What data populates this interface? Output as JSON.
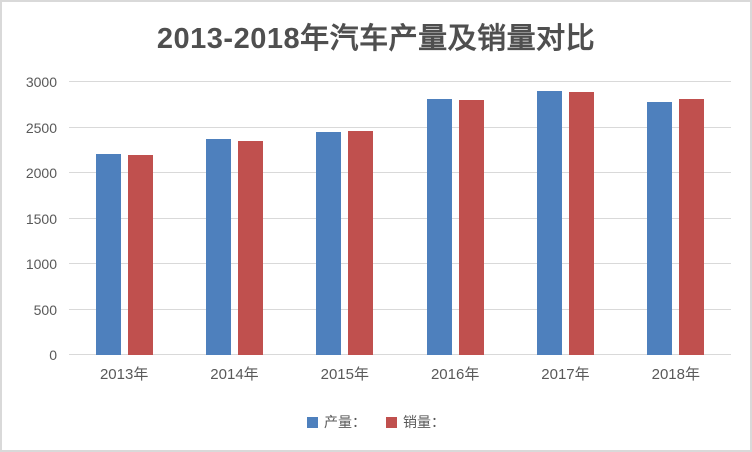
{
  "window": {
    "background_color": "#FFFFFF",
    "border_color": "#D9D9D9"
  },
  "chart_data": {
    "type": "bar",
    "title": "2013-2018年汽车产量及销量对比",
    "categories": [
      "2013年",
      "2014年",
      "2015年",
      "2016年",
      "2017年",
      "2018年"
    ],
    "series": [
      {
        "key": "production",
        "name": "产量：",
        "color": "#4E80BD",
        "values": [
          2211.68,
          2372.29,
          2450.33,
          2811.88,
          2901.54,
          2780.92
        ]
      },
      {
        "key": "sales",
        "name": "销量：",
        "color": "#C0504E",
        "values": [
          2198.41,
          2349.19,
          2459.76,
          2802.82,
          2887.89,
          2808.06
        ]
      }
    ],
    "xlabel": "",
    "ylabel": "",
    "ylim": [
      0,
      3000
    ],
    "yticks": [
      0,
      500,
      1000,
      1500,
      2000,
      2500,
      3000
    ],
    "grid": true,
    "gridline_color": "#D9D9D9",
    "text_color": "#595959",
    "legend_position": "bottom"
  }
}
